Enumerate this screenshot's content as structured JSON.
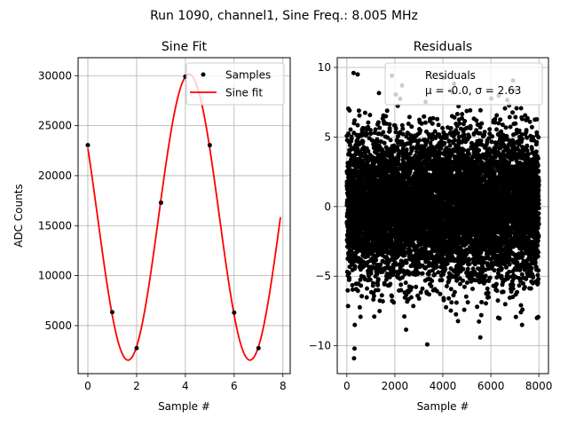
{
  "figure": {
    "suptitle": "Run 1090, channel1, Sine Freq.: 8.005 MHz"
  },
  "colors": {
    "fit_line": "#ff0000",
    "markers": "#000000",
    "grid": "#b0b0b0",
    "legend_border": "#cccccc"
  },
  "chart_data": [
    {
      "type": "line",
      "title": "Sine Fit",
      "xlabel": "Sample #",
      "ylabel": "ADC Counts",
      "xlim": [
        -0.4,
        8.3
      ],
      "ylim": [
        200,
        31800
      ],
      "xticks": [
        0,
        2,
        4,
        6,
        8
      ],
      "yticks": [
        5000,
        10000,
        15000,
        20000,
        25000,
        30000
      ],
      "grid": true,
      "legend_position": "top-right",
      "series": [
        {
          "name": "Samples",
          "kind": "scatter",
          "x": [
            0,
            1,
            2,
            3,
            4,
            5,
            6,
            7
          ],
          "y": [
            23050,
            6350,
            2750,
            17300,
            29900,
            23050,
            6300,
            2750
          ]
        },
        {
          "name": "Sine fit",
          "kind": "line",
          "model": {
            "offset": 15850,
            "amplitude": 14300,
            "period": 5,
            "peak_x": 4.15
          },
          "x_range": [
            0,
            7.9
          ]
        }
      ]
    },
    {
      "type": "scatter",
      "title": "Residuals",
      "xlabel": "Sample #",
      "xlim": [
        -400,
        8400
      ],
      "ylim": [
        -12,
        10.7
      ],
      "xticks": [
        0,
        2000,
        4000,
        6000,
        8000
      ],
      "yticks": [
        -10,
        -5,
        0,
        5,
        10
      ],
      "grid": true,
      "legend_position": "top-right",
      "legend": {
        "name": "Residuals",
        "stats_text": "μ = -0.0, σ = 2.63"
      },
      "residual_series": {
        "name": "Residuals",
        "mean": 0.0,
        "sigma": 2.63,
        "x_range": [
          0,
          8000
        ],
        "count": 8000
      },
      "outliers": {
        "x": [
          300,
          320,
          330,
          2300,
          3350,
          450,
          7300,
          280,
          4400,
          5600
        ],
        "y": [
          -10.9,
          -10.2,
          -8.5,
          8.7,
          -9.9,
          9.5,
          -8.5,
          9.6,
          8.2,
          -7.8
        ]
      }
    }
  ]
}
